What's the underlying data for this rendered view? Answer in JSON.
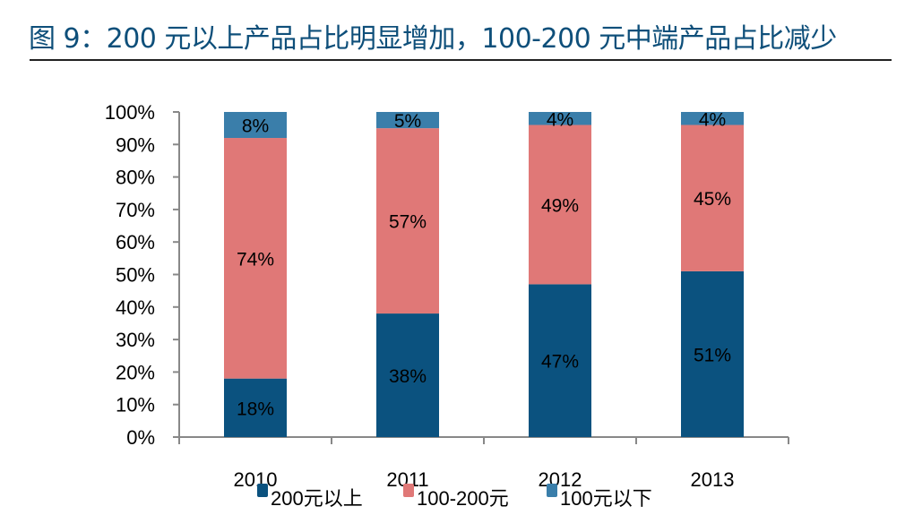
{
  "figure_title": "图 9：200 元以上产品占比明显增加，100-200 元中端产品占比减少",
  "chart_data": {
    "type": "bar",
    "stacked": true,
    "categories": [
      "2010",
      "2011",
      "2012",
      "2013"
    ],
    "series": [
      {
        "name": "200元以上",
        "values": [
          18,
          38,
          47,
          51
        ],
        "color": "#0b527f"
      },
      {
        "name": "100-200元",
        "values": [
          74,
          57,
          49,
          45
        ],
        "color": "#e07877"
      },
      {
        "name": "100元以下",
        "values": [
          8,
          5,
          4,
          4
        ],
        "color": "#3a7eaa"
      }
    ],
    "value_labels_suffix": "%",
    "ylim": [
      0,
      100
    ],
    "yticks": [
      "0%",
      "10%",
      "20%",
      "30%",
      "40%",
      "50%",
      "60%",
      "70%",
      "80%",
      "90%",
      "100%"
    ],
    "grid": false,
    "legend": "bottom"
  }
}
